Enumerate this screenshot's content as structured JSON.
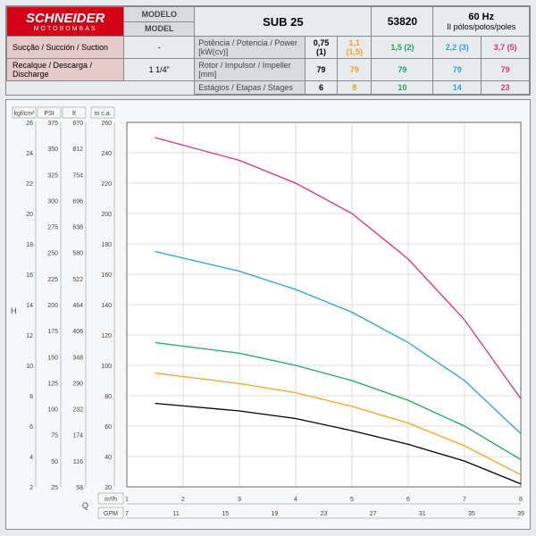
{
  "header": {
    "brand": "SCHNEIDER",
    "brand_sub": "MOTOBOMBAS",
    "model_lbl_pt": "MODELO",
    "model_lbl_en": "MODEL",
    "model": "SUB 25",
    "code": "53820",
    "hz": "60 Hz",
    "poles": "II pólos/polos/poles",
    "suction_lbl": "Sucção / Succión / Suction",
    "suction_val": "-",
    "discharge_lbl": "Recalque / Descarga / Discharge",
    "discharge_val": "1 1/4\"",
    "row_power": "Potência / Potencia / Power [kW(cv)]",
    "row_rotor": "Rotor / Impulsor / Impeller [mm]",
    "row_stages": "Estágios / Etapas / Stages",
    "series": [
      {
        "name": "0,75 (1)",
        "rotor": "79",
        "stages": "6",
        "color": "#000000"
      },
      {
        "name": "1,1 (1,5)",
        "rotor": "79",
        "stages": "8",
        "color": "#f6a11a"
      },
      {
        "name": "1,5 (2)",
        "rotor": "79",
        "stages": "10",
        "color": "#1ea85a"
      },
      {
        "name": "2,2 (3)",
        "rotor": "79",
        "stages": "14",
        "color": "#2aa3d9"
      },
      {
        "name": "3,7 (5)",
        "rotor": "79",
        "stages": "23",
        "color": "#d9337c"
      }
    ]
  },
  "chart": {
    "y_label": "H",
    "x_label": "Q",
    "y_scales": [
      {
        "label": "kgf/cm²",
        "ticks": [
          2,
          4,
          6,
          8,
          10,
          12,
          14,
          16,
          18,
          20,
          22,
          24,
          26
        ]
      },
      {
        "label": "PSI",
        "ticks": [
          25,
          50,
          75,
          100,
          125,
          150,
          175,
          200,
          225,
          250,
          275,
          300,
          325,
          350,
          375
        ]
      },
      {
        "label": "ft",
        "ticks": [
          58,
          116,
          174,
          232,
          290,
          348,
          406,
          464,
          522,
          580,
          638,
          696,
          754,
          812,
          870
        ]
      },
      {
        "label": "m c.a.",
        "ticks": [
          20,
          40,
          60,
          80,
          100,
          120,
          140,
          160,
          180,
          200,
          220,
          240,
          260
        ]
      }
    ],
    "y_main_min": 20,
    "y_main_max": 260,
    "y_grid_step": 20,
    "x_scales": [
      {
        "label": "m³/h",
        "ticks": [
          1,
          2,
          3,
          4,
          5,
          6,
          7,
          8
        ]
      },
      {
        "label": "GPM",
        "ticks": [
          7,
          11,
          15,
          19,
          23,
          27,
          31,
          35,
          39
        ]
      }
    ],
    "x_main_min": 1,
    "x_main_max": 8,
    "curves": [
      {
        "color": "#000000",
        "pts": [
          [
            1.5,
            75
          ],
          [
            3,
            70
          ],
          [
            4,
            65
          ],
          [
            5,
            57
          ],
          [
            6,
            48
          ],
          [
            7,
            37
          ],
          [
            8,
            22
          ]
        ]
      },
      {
        "color": "#f6a11a",
        "pts": [
          [
            1.5,
            95
          ],
          [
            3,
            88
          ],
          [
            4,
            82
          ],
          [
            5,
            73
          ],
          [
            6,
            62
          ],
          [
            7,
            47
          ],
          [
            8,
            28
          ]
        ]
      },
      {
        "color": "#1ea85a",
        "pts": [
          [
            1.5,
            115
          ],
          [
            3,
            108
          ],
          [
            4,
            100
          ],
          [
            5,
            90
          ],
          [
            6,
            77
          ],
          [
            7,
            60
          ],
          [
            8,
            38
          ]
        ]
      },
      {
        "color": "#2aa3d9",
        "pts": [
          [
            1.5,
            175
          ],
          [
            3,
            162
          ],
          [
            4,
            150
          ],
          [
            5,
            135
          ],
          [
            6,
            115
          ],
          [
            7,
            90
          ],
          [
            8,
            55
          ]
        ]
      },
      {
        "color": "#d9337c",
        "pts": [
          [
            1.5,
            250
          ],
          [
            3,
            235
          ],
          [
            4,
            220
          ],
          [
            5,
            200
          ],
          [
            6,
            170
          ],
          [
            7,
            130
          ],
          [
            8,
            78
          ]
        ]
      }
    ],
    "bg": "#f6f7f8",
    "grid": "#b8bcc0",
    "axis": "#444",
    "line_w": 1.3
  }
}
